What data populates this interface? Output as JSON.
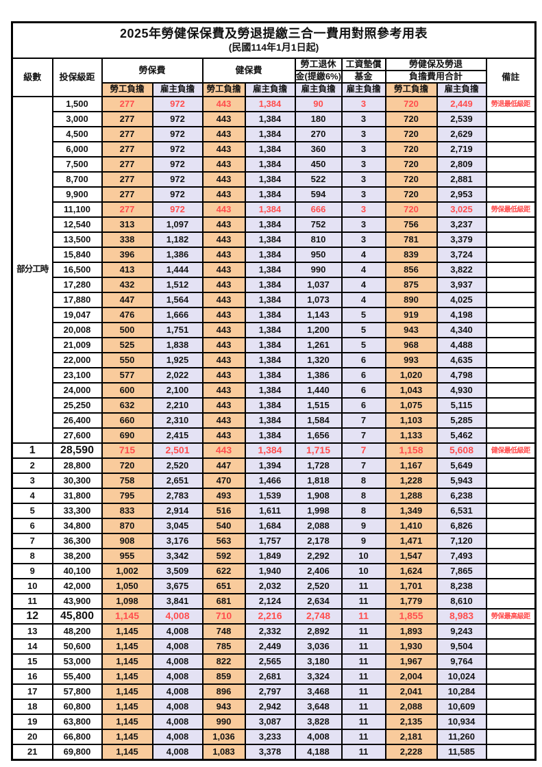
{
  "title": "2025年勞健保保費及勞退提繳三合一費用對照參考用表",
  "subtitle": "(民國114年1月1日起)",
  "colors": {
    "worker_bg": "#F9CB9C",
    "employer_bg": "#E4E2F4",
    "highlight_red": "#FF4D4D",
    "border": "#000000"
  },
  "header": {
    "level": "級數",
    "bracket": "投保級距",
    "labor_insurance": "勞保費",
    "health_insurance": "健保費",
    "pension_line1": "勞工退休",
    "pension_line2": "金(提繳6%)",
    "wage_fund_line1": "工資墊償",
    "wage_fund_line2": "基金",
    "total_line1": "勞健保及勞退",
    "total_line2": "負擔費用合計",
    "remark": "備註",
    "worker_share": "勞工負擔",
    "employer_share": "雇主負擔"
  },
  "part_time_label": "部分工時",
  "part_time_span": 23,
  "rows": [
    {
      "level": "",
      "bracket": "1,500",
      "labor_w": "277",
      "labor_e": "972",
      "health_w": "443",
      "health_e": "1,384",
      "pension": "90",
      "fund": "3",
      "total_w": "720",
      "total_e": "2,449",
      "remark": "勞退最低級距",
      "red": true
    },
    {
      "level": "",
      "bracket": "3,000",
      "labor_w": "277",
      "labor_e": "972",
      "health_w": "443",
      "health_e": "1,384",
      "pension": "180",
      "fund": "3",
      "total_w": "720",
      "total_e": "2,539",
      "remark": ""
    },
    {
      "level": "",
      "bracket": "4,500",
      "labor_w": "277",
      "labor_e": "972",
      "health_w": "443",
      "health_e": "1,384",
      "pension": "270",
      "fund": "3",
      "total_w": "720",
      "total_e": "2,629",
      "remark": ""
    },
    {
      "level": "",
      "bracket": "6,000",
      "labor_w": "277",
      "labor_e": "972",
      "health_w": "443",
      "health_e": "1,384",
      "pension": "360",
      "fund": "3",
      "total_w": "720",
      "total_e": "2,719",
      "remark": ""
    },
    {
      "level": "",
      "bracket": "7,500",
      "labor_w": "277",
      "labor_e": "972",
      "health_w": "443",
      "health_e": "1,384",
      "pension": "450",
      "fund": "3",
      "total_w": "720",
      "total_e": "2,809",
      "remark": ""
    },
    {
      "level": "",
      "bracket": "8,700",
      "labor_w": "277",
      "labor_e": "972",
      "health_w": "443",
      "health_e": "1,384",
      "pension": "522",
      "fund": "3",
      "total_w": "720",
      "total_e": "2,881",
      "remark": ""
    },
    {
      "level": "",
      "bracket": "9,900",
      "labor_w": "277",
      "labor_e": "972",
      "health_w": "443",
      "health_e": "1,384",
      "pension": "594",
      "fund": "3",
      "total_w": "720",
      "total_e": "2,953",
      "remark": ""
    },
    {
      "level": "",
      "bracket": "11,100",
      "labor_w": "277",
      "labor_e": "972",
      "health_w": "443",
      "health_e": "1,384",
      "pension": "666",
      "fund": "3",
      "total_w": "720",
      "total_e": "3,025",
      "remark": "勞保最低級距",
      "red": true
    },
    {
      "level": "",
      "bracket": "12,540",
      "labor_w": "313",
      "labor_e": "1,097",
      "health_w": "443",
      "health_e": "1,384",
      "pension": "752",
      "fund": "3",
      "total_w": "756",
      "total_e": "3,237",
      "remark": ""
    },
    {
      "level": "",
      "bracket": "13,500",
      "labor_w": "338",
      "labor_e": "1,182",
      "health_w": "443",
      "health_e": "1,384",
      "pension": "810",
      "fund": "3",
      "total_w": "781",
      "total_e": "3,379",
      "remark": ""
    },
    {
      "level": "",
      "bracket": "15,840",
      "labor_w": "396",
      "labor_e": "1,386",
      "health_w": "443",
      "health_e": "1,384",
      "pension": "950",
      "fund": "4",
      "total_w": "839",
      "total_e": "3,724",
      "remark": ""
    },
    {
      "level": "",
      "bracket": "16,500",
      "labor_w": "413",
      "labor_e": "1,444",
      "health_w": "443",
      "health_e": "1,384",
      "pension": "990",
      "fund": "4",
      "total_w": "856",
      "total_e": "3,822",
      "remark": ""
    },
    {
      "level": "",
      "bracket": "17,280",
      "labor_w": "432",
      "labor_e": "1,512",
      "health_w": "443",
      "health_e": "1,384",
      "pension": "1,037",
      "fund": "4",
      "total_w": "875",
      "total_e": "3,937",
      "remark": ""
    },
    {
      "level": "",
      "bracket": "17,880",
      "labor_w": "447",
      "labor_e": "1,564",
      "health_w": "443",
      "health_e": "1,384",
      "pension": "1,073",
      "fund": "4",
      "total_w": "890",
      "total_e": "4,025",
      "remark": ""
    },
    {
      "level": "",
      "bracket": "19,047",
      "labor_w": "476",
      "labor_e": "1,666",
      "health_w": "443",
      "health_e": "1,384",
      "pension": "1,143",
      "fund": "5",
      "total_w": "919",
      "total_e": "4,198",
      "remark": ""
    },
    {
      "level": "",
      "bracket": "20,008",
      "labor_w": "500",
      "labor_e": "1,751",
      "health_w": "443",
      "health_e": "1,384",
      "pension": "1,200",
      "fund": "5",
      "total_w": "943",
      "total_e": "4,340",
      "remark": ""
    },
    {
      "level": "",
      "bracket": "21,009",
      "labor_w": "525",
      "labor_e": "1,838",
      "health_w": "443",
      "health_e": "1,384",
      "pension": "1,261",
      "fund": "5",
      "total_w": "968",
      "total_e": "4,488",
      "remark": ""
    },
    {
      "level": "",
      "bracket": "22,000",
      "labor_w": "550",
      "labor_e": "1,925",
      "health_w": "443",
      "health_e": "1,384",
      "pension": "1,320",
      "fund": "6",
      "total_w": "993",
      "total_e": "4,635",
      "remark": ""
    },
    {
      "level": "",
      "bracket": "23,100",
      "labor_w": "577",
      "labor_e": "2,022",
      "health_w": "443",
      "health_e": "1,384",
      "pension": "1,386",
      "fund": "6",
      "total_w": "1,020",
      "total_e": "4,798",
      "remark": ""
    },
    {
      "level": "",
      "bracket": "24,000",
      "labor_w": "600",
      "labor_e": "2,100",
      "health_w": "443",
      "health_e": "1,384",
      "pension": "1,440",
      "fund": "6",
      "total_w": "1,043",
      "total_e": "4,930",
      "remark": ""
    },
    {
      "level": "",
      "bracket": "25,250",
      "labor_w": "632",
      "labor_e": "2,210",
      "health_w": "443",
      "health_e": "1,384",
      "pension": "1,515",
      "fund": "6",
      "total_w": "1,075",
      "total_e": "5,115",
      "remark": ""
    },
    {
      "level": "",
      "bracket": "26,400",
      "labor_w": "660",
      "labor_e": "2,310",
      "health_w": "443",
      "health_e": "1,384",
      "pension": "1,584",
      "fund": "7",
      "total_w": "1,103",
      "total_e": "5,285",
      "remark": ""
    },
    {
      "level": "",
      "bracket": "27,600",
      "labor_w": "690",
      "labor_e": "2,415",
      "health_w": "443",
      "health_e": "1,384",
      "pension": "1,656",
      "fund": "7",
      "total_w": "1,133",
      "total_e": "5,462",
      "remark": ""
    },
    {
      "level": "1",
      "bracket": "28,590",
      "labor_w": "715",
      "labor_e": "2,501",
      "health_w": "443",
      "health_e": "1,384",
      "pension": "1,715",
      "fund": "7",
      "total_w": "1,158",
      "total_e": "5,608",
      "remark": "健保最低級距",
      "red": true,
      "big": true
    },
    {
      "level": "2",
      "bracket": "28,800",
      "labor_w": "720",
      "labor_e": "2,520",
      "health_w": "447",
      "health_e": "1,394",
      "pension": "1,728",
      "fund": "7",
      "total_w": "1,167",
      "total_e": "5,649",
      "remark": ""
    },
    {
      "level": "3",
      "bracket": "30,300",
      "labor_w": "758",
      "labor_e": "2,651",
      "health_w": "470",
      "health_e": "1,466",
      "pension": "1,818",
      "fund": "8",
      "total_w": "1,228",
      "total_e": "5,943",
      "remark": ""
    },
    {
      "level": "4",
      "bracket": "31,800",
      "labor_w": "795",
      "labor_e": "2,783",
      "health_w": "493",
      "health_e": "1,539",
      "pension": "1,908",
      "fund": "8",
      "total_w": "1,288",
      "total_e": "6,238",
      "remark": ""
    },
    {
      "level": "5",
      "bracket": "33,300",
      "labor_w": "833",
      "labor_e": "2,914",
      "health_w": "516",
      "health_e": "1,611",
      "pension": "1,998",
      "fund": "8",
      "total_w": "1,349",
      "total_e": "6,531",
      "remark": ""
    },
    {
      "level": "6",
      "bracket": "34,800",
      "labor_w": "870",
      "labor_e": "3,045",
      "health_w": "540",
      "health_e": "1,684",
      "pension": "2,088",
      "fund": "9",
      "total_w": "1,410",
      "total_e": "6,826",
      "remark": ""
    },
    {
      "level": "7",
      "bracket": "36,300",
      "labor_w": "908",
      "labor_e": "3,176",
      "health_w": "563",
      "health_e": "1,757",
      "pension": "2,178",
      "fund": "9",
      "total_w": "1,471",
      "total_e": "7,120",
      "remark": ""
    },
    {
      "level": "8",
      "bracket": "38,200",
      "labor_w": "955",
      "labor_e": "3,342",
      "health_w": "592",
      "health_e": "1,849",
      "pension": "2,292",
      "fund": "10",
      "total_w": "1,547",
      "total_e": "7,493",
      "remark": ""
    },
    {
      "level": "9",
      "bracket": "40,100",
      "labor_w": "1,002",
      "labor_e": "3,509",
      "health_w": "622",
      "health_e": "1,940",
      "pension": "2,406",
      "fund": "10",
      "total_w": "1,624",
      "total_e": "7,865",
      "remark": ""
    },
    {
      "level": "10",
      "bracket": "42,000",
      "labor_w": "1,050",
      "labor_e": "3,675",
      "health_w": "651",
      "health_e": "2,032",
      "pension": "2,520",
      "fund": "11",
      "total_w": "1,701",
      "total_e": "8,238",
      "remark": ""
    },
    {
      "level": "11",
      "bracket": "43,900",
      "labor_w": "1,098",
      "labor_e": "3,841",
      "health_w": "681",
      "health_e": "2,124",
      "pension": "2,634",
      "fund": "11",
      "total_w": "1,779",
      "total_e": "8,610",
      "remark": ""
    },
    {
      "level": "12",
      "bracket": "45,800",
      "labor_w": "1,145",
      "labor_e": "4,008",
      "health_w": "710",
      "health_e": "2,216",
      "pension": "2,748",
      "fund": "11",
      "total_w": "1,855",
      "total_e": "8,983",
      "remark": "勞保最高級距",
      "red": true,
      "big": true
    },
    {
      "level": "13",
      "bracket": "48,200",
      "labor_w": "1,145",
      "labor_e": "4,008",
      "health_w": "748",
      "health_e": "2,332",
      "pension": "2,892",
      "fund": "11",
      "total_w": "1,893",
      "total_e": "9,243",
      "remark": ""
    },
    {
      "level": "14",
      "bracket": "50,600",
      "labor_w": "1,145",
      "labor_e": "4,008",
      "health_w": "785",
      "health_e": "2,449",
      "pension": "3,036",
      "fund": "11",
      "total_w": "1,930",
      "total_e": "9,504",
      "remark": ""
    },
    {
      "level": "15",
      "bracket": "53,000",
      "labor_w": "1,145",
      "labor_e": "4,008",
      "health_w": "822",
      "health_e": "2,565",
      "pension": "3,180",
      "fund": "11",
      "total_w": "1,967",
      "total_e": "9,764",
      "remark": ""
    },
    {
      "level": "16",
      "bracket": "55,400",
      "labor_w": "1,145",
      "labor_e": "4,008",
      "health_w": "859",
      "health_e": "2,681",
      "pension": "3,324",
      "fund": "11",
      "total_w": "2,004",
      "total_e": "10,024",
      "remark": ""
    },
    {
      "level": "17",
      "bracket": "57,800",
      "labor_w": "1,145",
      "labor_e": "4,008",
      "health_w": "896",
      "health_e": "2,797",
      "pension": "3,468",
      "fund": "11",
      "total_w": "2,041",
      "total_e": "10,284",
      "remark": ""
    },
    {
      "level": "18",
      "bracket": "60,800",
      "labor_w": "1,145",
      "labor_e": "4,008",
      "health_w": "943",
      "health_e": "2,942",
      "pension": "3,648",
      "fund": "11",
      "total_w": "2,088",
      "total_e": "10,609",
      "remark": ""
    },
    {
      "level": "19",
      "bracket": "63,800",
      "labor_w": "1,145",
      "labor_e": "4,008",
      "health_w": "990",
      "health_e": "3,087",
      "pension": "3,828",
      "fund": "11",
      "total_w": "2,135",
      "total_e": "10,934",
      "remark": ""
    },
    {
      "level": "20",
      "bracket": "66,800",
      "labor_w": "1,145",
      "labor_e": "4,008",
      "health_w": "1,036",
      "health_e": "3,233",
      "pension": "4,008",
      "fund": "11",
      "total_w": "2,181",
      "total_e": "11,260",
      "remark": ""
    },
    {
      "level": "21",
      "bracket": "69,800",
      "labor_w": "1,145",
      "labor_e": "4,008",
      "health_w": "1,083",
      "health_e": "3,378",
      "pension": "4,188",
      "fund": "11",
      "total_w": "2,228",
      "total_e": "11,585",
      "remark": ""
    }
  ]
}
